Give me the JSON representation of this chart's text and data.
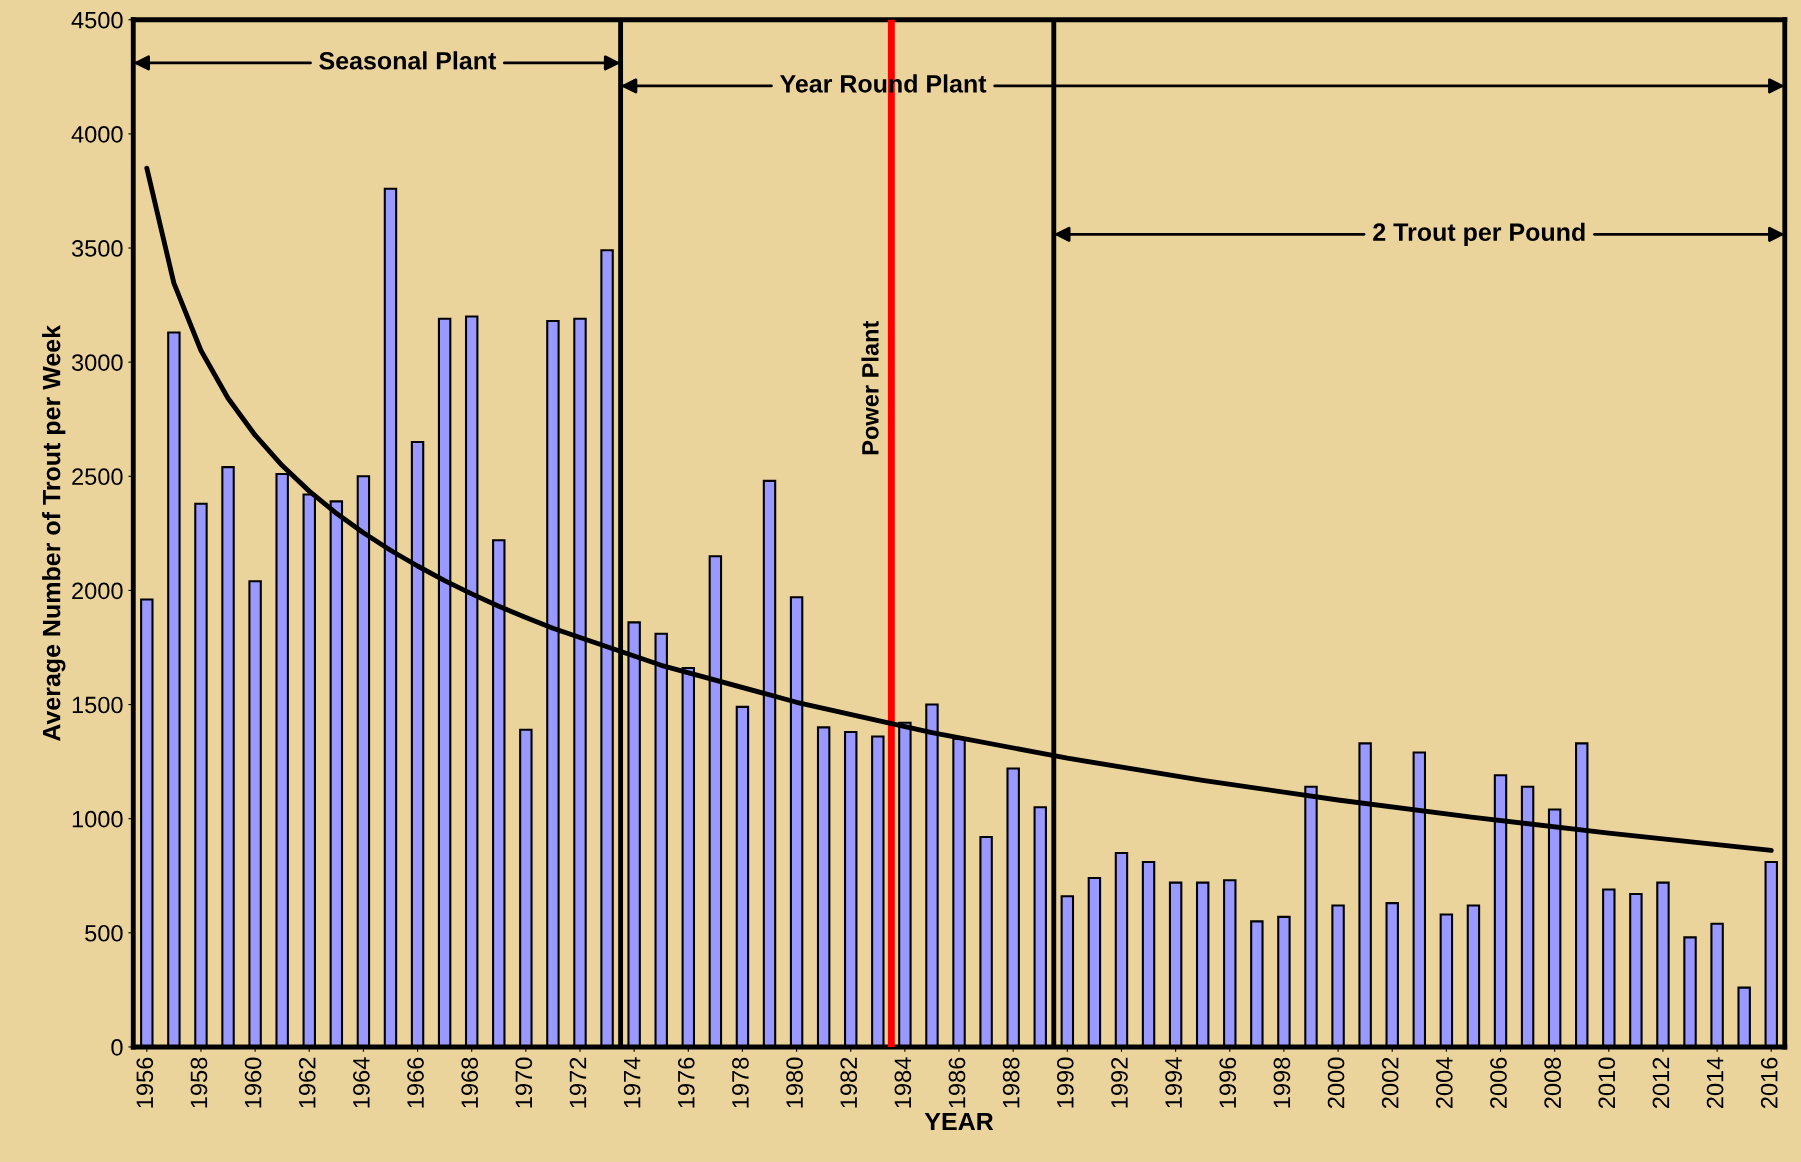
{
  "chart_data": {
    "type": "bar",
    "xlabel": "YEAR",
    "ylabel": "Average Number of Trout per Week",
    "x": [
      1956,
      1957,
      1958,
      1959,
      1960,
      1961,
      1962,
      1963,
      1964,
      1965,
      1966,
      1967,
      1968,
      1969,
      1970,
      1971,
      1972,
      1973,
      1974,
      1975,
      1976,
      1977,
      1978,
      1979,
      1980,
      1981,
      1982,
      1983,
      1984,
      1985,
      1986,
      1987,
      1988,
      1989,
      1990,
      1991,
      1992,
      1993,
      1994,
      1995,
      1996,
      1997,
      1998,
      1999,
      2000,
      2001,
      2002,
      2003,
      2004,
      2005,
      2006,
      2007,
      2008,
      2009,
      2010,
      2011,
      2012,
      2013,
      2014,
      2015,
      2016
    ],
    "series": [
      {
        "color": "#9999ff",
        "values": [
          1960,
          3130,
          2380,
          2540,
          2040,
          2510,
          2420,
          2390,
          2500,
          3760,
          2650,
          3190,
          3200,
          2220,
          1390,
          3180,
          3190,
          3490,
          1860,
          1810,
          1660,
          2150,
          1490,
          2480,
          1970,
          1400,
          1380,
          1360,
          1420,
          1500,
          1350,
          920,
          1220,
          1050,
          660,
          740,
          850,
          810,
          720,
          720,
          730,
          550,
          570,
          1140,
          620,
          1330,
          630,
          1290,
          580,
          620,
          1190,
          1140,
          1040,
          1330,
          690,
          670,
          720,
          480,
          540,
          260,
          810
        ]
      },
      {
        "type": "line",
        "color": "#000000",
        "x": [
          1956,
          1957,
          1958,
          1959,
          1960,
          1961,
          1962,
          1963,
          1964,
          1965,
          1966,
          1967,
          1968,
          1969,
          1970,
          1971,
          1975,
          1980,
          1985,
          1990,
          1995,
          2000,
          2005,
          2010,
          2016
        ],
        "values": [
          3850,
          3346,
          3051,
          2842,
          2680,
          2547,
          2435,
          2338,
          2253,
          2176,
          2107,
          2043,
          1985,
          1931,
          1881,
          1834,
          1672,
          1510,
          1377,
          1265,
          1168,
          1082,
          1006,
          937,
          861
        ]
      }
    ],
    "xlim": [
      1955.5,
      2016.5
    ],
    "xticks": [
      1956,
      1958,
      1960,
      1962,
      1964,
      1966,
      1968,
      1970,
      1972,
      1974,
      1976,
      1978,
      1980,
      1982,
      1984,
      1986,
      1988,
      1990,
      1992,
      1994,
      1996,
      1998,
      2000,
      2002,
      2004,
      2006,
      2008,
      2010,
      2012,
      2014,
      2016
    ],
    "ylim": [
      0,
      4500
    ],
    "yticks": [
      0,
      500,
      1000,
      1500,
      2000,
      2500,
      3000,
      3500,
      4000,
      4500
    ],
    "ref_lines": [
      {
        "axis": "x",
        "value": 1973.5,
        "color": "#000000"
      },
      {
        "axis": "x",
        "value": 1983.5,
        "color": "#ff0000",
        "label": "Power Plant"
      },
      {
        "axis": "x",
        "value": 1989.5,
        "color": "#000000"
      }
    ],
    "annotations": [
      "Seasonal Plant",
      {
        "text": "Year Round Plant",
        "x": 1973.5,
        "y": 4210
      },
      {
        "text": "2 Trout per Pound",
        "x": 1989.5,
        "y": 3560
      }
    ],
    "grid": false
  }
}
